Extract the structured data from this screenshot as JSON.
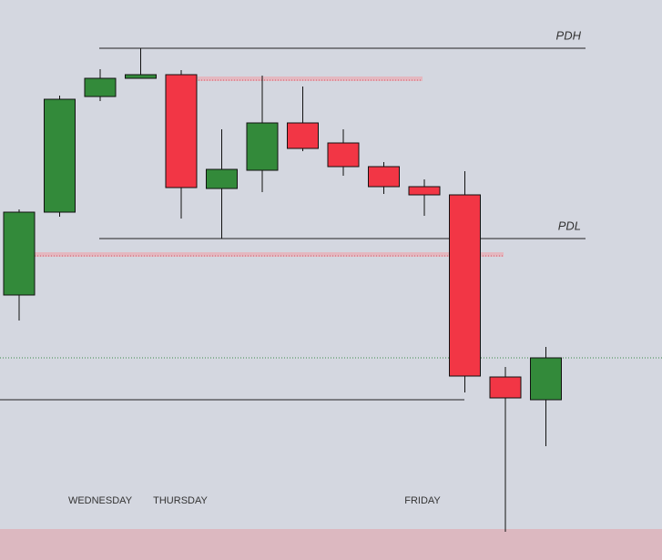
{
  "chart_data": {
    "type": "candlestick",
    "categories": [
      null,
      null,
      null,
      null,
      null,
      null,
      null,
      null,
      null,
      null,
      null,
      null,
      null,
      null
    ],
    "open": [
      291,
      382,
      509,
      529,
      533,
      408,
      428,
      480,
      458,
      432,
      410,
      401,
      201,
      176
    ],
    "high": [
      385,
      510,
      539,
      562,
      538,
      473,
      532,
      520,
      473,
      437,
      418,
      427,
      212,
      234
    ],
    "low": [
      263,
      377,
      504,
      529,
      375,
      353,
      404,
      449,
      422,
      402,
      378,
      184,
      31,
      125
    ],
    "close": [
      382,
      506,
      529,
      533,
      409,
      429,
      480,
      452,
      432,
      410,
      401,
      202,
      178,
      222
    ],
    "up_color": "#338a3a",
    "down_color": "#f23645",
    "ylim": [
      0,
      615
    ],
    "levels": [
      {
        "label": "PDH",
        "value": 562
      },
      {
        "label": "PDL",
        "value": 353
      }
    ],
    "annotations": [
      "WEDNESDAY",
      "THURSDAY",
      "FRIDAY"
    ]
  }
}
